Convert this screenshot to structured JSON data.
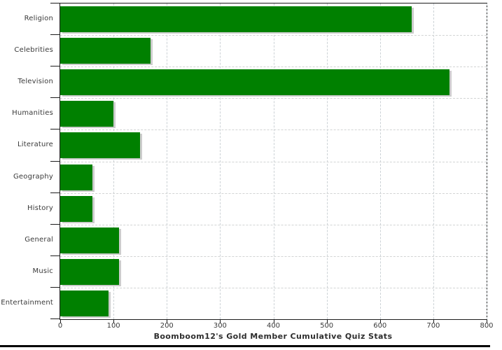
{
  "chart_data": {
    "type": "bar",
    "orientation": "horizontal",
    "title": "Boomboom12's Gold Member Cumulative Quiz Stats",
    "categories": [
      "Religion",
      "Celebrities",
      "Television",
      "Humanities",
      "Literature",
      "Geography",
      "History",
      "General",
      "Music",
      "Entertainment"
    ],
    "values": [
      660,
      170,
      730,
      100,
      150,
      60,
      60,
      110,
      110,
      90
    ],
    "xlabel": "",
    "ylabel": "",
    "xlim": [
      0,
      800
    ],
    "xticks": [
      0,
      100,
      200,
      300,
      400,
      500,
      600,
      700,
      800
    ],
    "grid": true,
    "legend_position": "none",
    "bar_color": "#008000",
    "bar_shadow_color": "#cccccc",
    "frame_color": "#1c1c1c",
    "grid_color": "#d2d4d4"
  }
}
